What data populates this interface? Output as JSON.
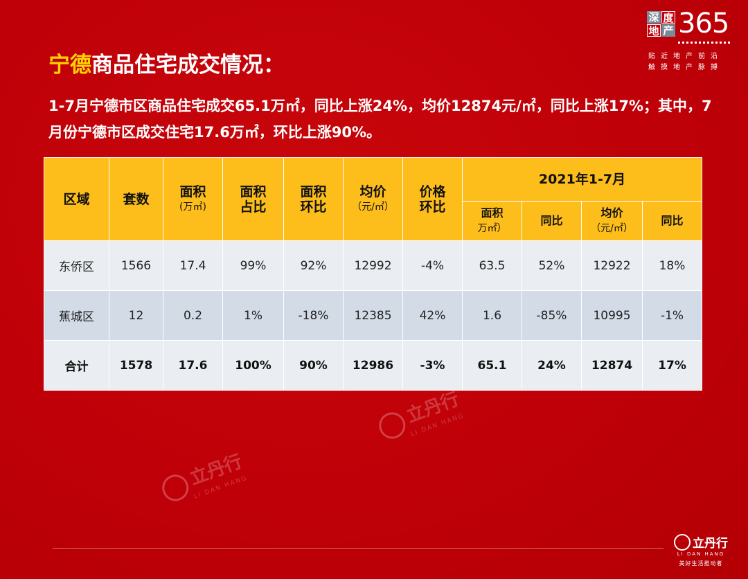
{
  "brand": {
    "box1": "深",
    "box2": "度",
    "box3": "地",
    "box4": "产",
    "number": "365",
    "line1": "贴近地产前沿",
    "line2": "触摸地产脉搏"
  },
  "title": {
    "highlight": "宁德",
    "rest": "商品住宅成交情况："
  },
  "summary": "1-7月宁德市区商品住宅成交65.1万㎡，同比上涨24%，均价12874元/㎡，同比上涨17%；其中，7月份宁德市区成交住宅17.6万㎡，环比上涨90%。",
  "table": {
    "headers": {
      "region": "区域",
      "units": "套数",
      "area": "面积",
      "area_unit": "(万㎡)",
      "area_share": "面积占比",
      "area_mom": "面积环比",
      "avg_price": "均价",
      "avg_price_unit": "（元/㎡）",
      "price_mom": "价格环比",
      "period": "2021年1-7月",
      "p_area": "面积",
      "p_area_unit": "万㎡）",
      "p_yoy": "同比",
      "p_price": "均价",
      "p_price_unit": "（元/㎡）",
      "p_price_yoy": "同比"
    },
    "rows": [
      {
        "region": "东侨区",
        "units": "1566",
        "area": "17.4",
        "area_share": "99%",
        "area_mom": "92%",
        "avg_price": "12992",
        "price_mom": "-4%",
        "p_area": "63.5",
        "p_yoy": "52%",
        "p_price": "12922",
        "p_price_yoy": "18%"
      },
      {
        "region": "蕉城区",
        "units": "12",
        "area": "0.2",
        "area_share": "1%",
        "area_mom": "-18%",
        "avg_price": "12385",
        "price_mom": "42%",
        "p_area": "1.6",
        "p_yoy": "-85%",
        "p_price": "10995",
        "p_price_yoy": "-1%"
      },
      {
        "region": "合计",
        "units": "1578",
        "area": "17.6",
        "area_share": "100%",
        "area_mom": "90%",
        "avg_price": "12986",
        "price_mom": "-3%",
        "p_area": "65.1",
        "p_yoy": "24%",
        "p_price": "12874",
        "p_price_yoy": "17%"
      }
    ]
  },
  "watermark": {
    "cn": "立丹行",
    "en": "LI DAN HANG"
  },
  "footer": {
    "cn": "立丹行",
    "en": "LI DAN HANG",
    "slogan": "美好生活推动者"
  },
  "colors": {
    "background": "#c00008",
    "header_fill": "#fdbd1b",
    "highlight_text": "#ffd400",
    "row_light": "#eaedf2",
    "row_dark": "#d3dbe7"
  }
}
